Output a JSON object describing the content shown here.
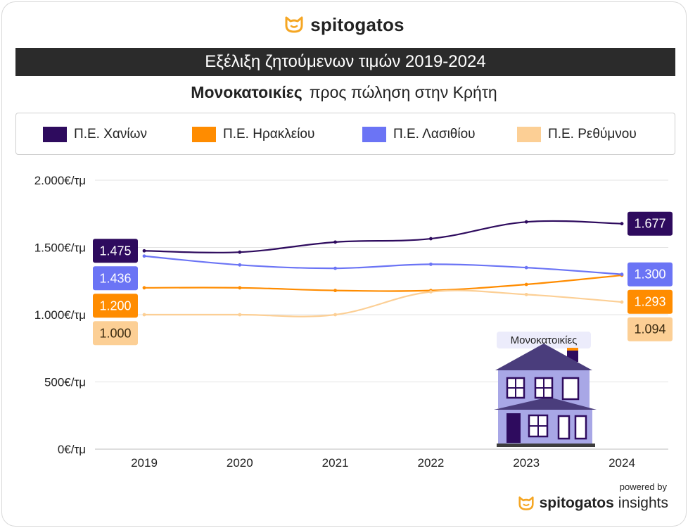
{
  "brand": {
    "name": "spitogatos",
    "insights": "insights",
    "powered_by": "powered by"
  },
  "title": "Εξέλιξη ζητούμενων τιμών 2019-2024",
  "subtitle": {
    "strong": "Μονοκατοικίες",
    "rest": "προς πώληση στην Κρήτη"
  },
  "house_label": "Μονοκατοικίες",
  "colors": {
    "chania": "#2e0b5e",
    "heraklion": "#ff8c00",
    "lasithi": "#6b74f5",
    "rethymno": "#fccf95",
    "grid": "#e3e3e3",
    "brand_orange": "#f5a623"
  },
  "chart_data": {
    "type": "line",
    "x": [
      "2019",
      "2020",
      "2021",
      "2022",
      "2023",
      "2024"
    ],
    "ylim": [
      0,
      2000
    ],
    "y_ticks": [
      0,
      500,
      1000,
      1500,
      2000
    ],
    "y_tick_labels": [
      "0€/τμ",
      "500€/τμ",
      "1.000€/τμ",
      "1.500€/τμ",
      "2.000€/τμ"
    ],
    "grid": "horizontal",
    "legend": "top",
    "series": [
      {
        "name": "Π.Ε. Χανίων",
        "key": "chania",
        "values": [
          1475,
          1465,
          1540,
          1565,
          1690,
          1677
        ],
        "first_label": "1.475",
        "last_label": "1.677"
      },
      {
        "name": "Π.Ε. Ηρακλείου",
        "key": "heraklion",
        "values": [
          1200,
          1200,
          1180,
          1180,
          1225,
          1293
        ],
        "first_label": "1.200",
        "last_label": "1.293"
      },
      {
        "name": "Π.Ε. Λασιθίου",
        "key": "lasithi",
        "values": [
          1436,
          1370,
          1345,
          1375,
          1350,
          1300
        ],
        "first_label": "1.436",
        "last_label": "1.300"
      },
      {
        "name": "Π.Ε. Ρεθύμνου",
        "key": "rethymno",
        "values": [
          1000,
          1000,
          1000,
          1170,
          1150,
          1094
        ],
        "first_label": "1.000",
        "last_label": "1.094"
      }
    ]
  }
}
